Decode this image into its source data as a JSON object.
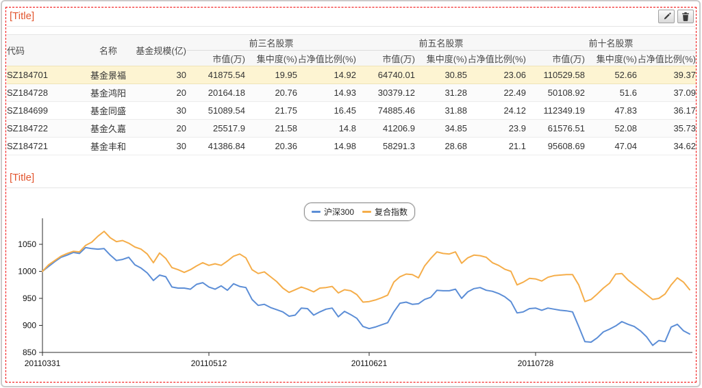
{
  "colors": {
    "title_text": "#e2552e",
    "selection_dashed_border": "#f20000",
    "highlight_row_bg": "#fdf4d2",
    "hs300_line": "#5b8dd6",
    "composite_line": "#f5ad49"
  },
  "table_widget": {
    "title": "[Title]",
    "table": {
      "fixed_columns": [
        "代码",
        "名称",
        "基金规模(亿)"
      ],
      "groups": [
        "前三名股票",
        "前五名股票",
        "前十名股票"
      ],
      "sub_columns": [
        "市值(万)",
        "集中度(%)",
        "占净值比例(%)"
      ],
      "rows": [
        {
          "code": "SZ184701",
          "name": "基金景福",
          "scale": "30",
          "values": [
            "41875.54",
            "19.95",
            "14.92",
            "64740.01",
            "30.85",
            "23.06",
            "110529.58",
            "52.66",
            "39.37"
          ],
          "highlighted": true
        },
        {
          "code": "SZ184728",
          "name": "基金鸿阳",
          "scale": "20",
          "values": [
            "20164.18",
            "20.76",
            "14.93",
            "30379.12",
            "31.28",
            "22.49",
            "50108.92",
            "51.6",
            "37.09"
          ],
          "highlighted": false
        },
        {
          "code": "SZ184699",
          "name": "基金同盛",
          "scale": "30",
          "values": [
            "51089.54",
            "21.75",
            "16.45",
            "74885.46",
            "31.88",
            "24.12",
            "112349.19",
            "47.83",
            "36.17"
          ],
          "highlighted": false
        },
        {
          "code": "SZ184722",
          "name": "基金久嘉",
          "scale": "20",
          "values": [
            "25517.9",
            "21.58",
            "14.8",
            "41206.9",
            "34.85",
            "23.9",
            "61576.51",
            "52.08",
            "35.73"
          ],
          "highlighted": false
        },
        {
          "code": "SZ184721",
          "name": "基金丰和",
          "scale": "30",
          "values": [
            "41386.84",
            "20.36",
            "14.98",
            "58291.3",
            "28.68",
            "21.1",
            "95608.69",
            "47.04",
            "34.62"
          ],
          "highlighted": false
        }
      ]
    }
  },
  "chart_widget": {
    "title": "[Title]"
  },
  "chart_data": {
    "type": "line",
    "title": "",
    "xlabel": "",
    "ylabel": "",
    "grid": false,
    "legend_position": "top-center",
    "ylim": [
      850,
      1088
    ],
    "yticks": [
      850,
      900,
      950,
      1000,
      1050
    ],
    "x_tick_labels": [
      "20110331",
      "20110512",
      "20110621",
      "20110728"
    ],
    "x_tick_indices": [
      0,
      27,
      53,
      80
    ],
    "series": [
      {
        "name": "沪深300",
        "color": "#5b8dd6",
        "values": [
          1000,
          1009,
          1018,
          1026,
          1030,
          1035,
          1033,
          1044,
          1042,
          1041,
          1042,
          1030,
          1020,
          1022,
          1026,
          1012,
          1006,
          997,
          983,
          993,
          990,
          971,
          969,
          969,
          967,
          976,
          979,
          971,
          967,
          973,
          965,
          977,
          972,
          970,
          948,
          937,
          939,
          933,
          929,
          925,
          917,
          919,
          932,
          931,
          919,
          925,
          930,
          932,
          916,
          926,
          920,
          913,
          898,
          894,
          897,
          901,
          905,
          925,
          941,
          943,
          939,
          940,
          948,
          952,
          965,
          964,
          964,
          967,
          950,
          962,
          968,
          970,
          965,
          963,
          959,
          953,
          944,
          923,
          925,
          931,
          932,
          928,
          932,
          930,
          928,
          927,
          925,
          898,
          870,
          869,
          877,
          888,
          893,
          899,
          907,
          902,
          898,
          890,
          879,
          863,
          872,
          870,
          897,
          902,
          890,
          884
        ]
      },
      {
        "name": "复合指数",
        "color": "#f5ad49",
        "values": [
          1000,
          1012,
          1020,
          1028,
          1033,
          1037,
          1036,
          1048,
          1054,
          1065,
          1074,
          1062,
          1055,
          1057,
          1052,
          1045,
          1041,
          1032,
          1016,
          1034,
          1024,
          1007,
          1003,
          998,
          1003,
          1010,
          1016,
          1011,
          1014,
          1011,
          1019,
          1028,
          1032,
          1025,
          1003,
          996,
          999,
          990,
          981,
          969,
          961,
          966,
          971,
          967,
          962,
          969,
          970,
          972,
          960,
          966,
          964,
          957,
          943,
          944,
          947,
          951,
          956,
          980,
          990,
          995,
          994,
          988,
          1010,
          1024,
          1036,
          1033,
          1032,
          1036,
          1015,
          1025,
          1030,
          1029,
          1026,
          1016,
          1011,
          1004,
          1000,
          975,
          980,
          987,
          986,
          982,
          989,
          992,
          993,
          994,
          994,
          975,
          944,
          948,
          958,
          969,
          978,
          995,
          996,
          984,
          975,
          966,
          957,
          948,
          950,
          958,
          975,
          988,
          980,
          966
        ]
      }
    ]
  }
}
